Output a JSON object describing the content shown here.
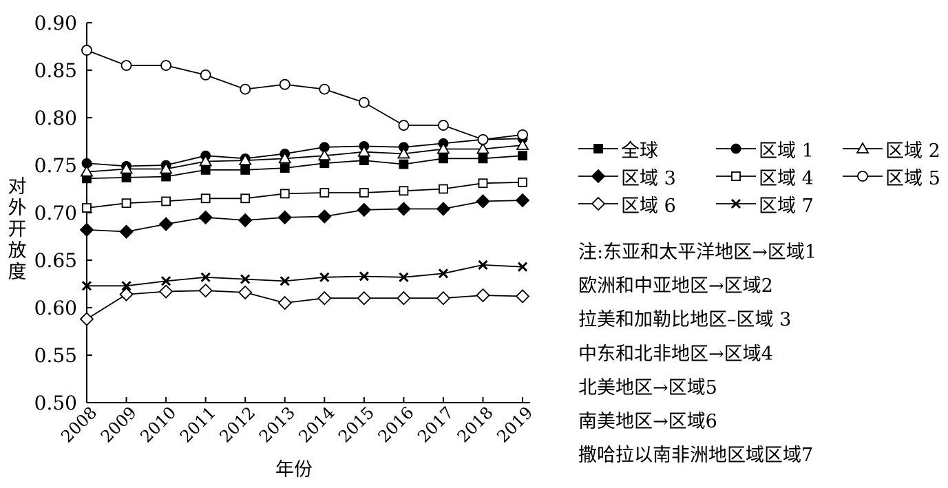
{
  "chart_data": {
    "type": "line",
    "xlabel": "年份",
    "ylabel": "对外开放度",
    "ylim": [
      0.5,
      0.9
    ],
    "yticks": [
      "0.50",
      "0.55",
      "0.60",
      "0.65",
      "0.70",
      "0.75",
      "0.80",
      "0.85",
      "0.90"
    ],
    "x": [
      "2008",
      "2009",
      "2010",
      "2011",
      "2012",
      "2013",
      "2014",
      "2015",
      "2016",
      "2017",
      "2018",
      "2019"
    ],
    "grid": false,
    "legend_position": "right",
    "series": [
      {
        "name": "全球",
        "marker": "square-filled",
        "values": [
          0.736,
          0.737,
          0.738,
          0.745,
          0.745,
          0.747,
          0.752,
          0.755,
          0.751,
          0.757,
          0.757,
          0.76
        ]
      },
      {
        "name": "区域1",
        "marker": "circle-filled",
        "values": [
          0.752,
          0.749,
          0.75,
          0.76,
          0.757,
          0.762,
          0.769,
          0.77,
          0.769,
          0.773,
          0.777,
          0.778
        ]
      },
      {
        "name": "区域2",
        "marker": "triangle-open",
        "values": [
          0.743,
          0.746,
          0.746,
          0.754,
          0.755,
          0.757,
          0.76,
          0.764,
          0.762,
          0.767,
          0.767,
          0.771
        ]
      },
      {
        "name": "区域3",
        "marker": "diamond-filled",
        "values": [
          0.682,
          0.68,
          0.688,
          0.695,
          0.692,
          0.695,
          0.696,
          0.703,
          0.704,
          0.704,
          0.712,
          0.713
        ]
      },
      {
        "name": "区域4",
        "marker": "square-open",
        "values": [
          0.705,
          0.71,
          0.712,
          0.715,
          0.715,
          0.72,
          0.721,
          0.721,
          0.723,
          0.725,
          0.731,
          0.732
        ]
      },
      {
        "name": "区域5",
        "marker": "circle-open",
        "values": [
          0.871,
          0.855,
          0.855,
          0.845,
          0.83,
          0.835,
          0.83,
          0.816,
          0.792,
          0.792,
          0.777,
          0.782
        ]
      },
      {
        "name": "区域6",
        "marker": "diamond-open",
        "values": [
          0.588,
          0.614,
          0.617,
          0.618,
          0.616,
          0.605,
          0.61,
          0.61,
          0.61,
          0.61,
          0.613,
          0.612
        ]
      },
      {
        "name": "区域7",
        "marker": "x",
        "values": [
          0.623,
          0.623,
          0.628,
          0.632,
          0.63,
          0.628,
          0.632,
          0.633,
          0.632,
          0.636,
          0.645,
          0.643
        ]
      }
    ],
    "legend": [
      {
        "marker": "square-filled",
        "text": "全球"
      },
      {
        "marker": "circle-filled",
        "text": "区域 1"
      },
      {
        "marker": "triangle-open",
        "text": "区域 2"
      },
      {
        "marker": "diamond-filled",
        "text": "区域 3"
      },
      {
        "marker": "square-open",
        "text": "区域 4"
      },
      {
        "marker": "circle-open",
        "text": "区域 5"
      },
      {
        "marker": "diamond-open",
        "text": "区域 6"
      },
      {
        "marker": "x",
        "text": "区域 7"
      }
    ],
    "notes": [
      "注:东亚和太平洋地区→区域1",
      "欧洲和中亚地区→区域2",
      "拉美和加勒比地区–区域  3",
      "中东和北非地区→区域4",
      "北美地区→区域5",
      "南美地区→区域6",
      "撒哈拉以南非洲地区域区域7"
    ]
  }
}
